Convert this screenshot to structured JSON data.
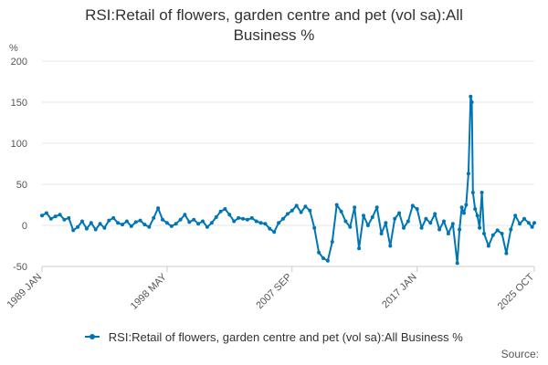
{
  "title_lines": [
    "RSI:Retail of flowers, garden centre and pet (vol sa):All",
    "Business %"
  ],
  "source": "Source:",
  "colors": {
    "series": "#0075b4",
    "grid": "#e6e6e6",
    "axis": "#cccccc"
  },
  "chart_data": {
    "type": "line",
    "title": "RSI:Retail of flowers, garden centre and pet (vol sa):All Business %",
    "ylabel": "%",
    "xlabel": "",
    "ylim": [
      -50,
      200
    ],
    "yticks": [
      -50,
      0,
      50,
      100,
      150,
      200
    ],
    "xlim": [
      "1989-01",
      "2025-10"
    ],
    "xticks": [
      "1989 JAN",
      "1998 MAY",
      "2007 SEP",
      "2017 JAN",
      "2025 OCT"
    ],
    "grid": true,
    "legend_position": "bottom",
    "series": [
      {
        "name": "RSI:Retail of flowers, garden centre and pet (vol sa):All Business %",
        "points": [
          [
            "1989-01",
            12
          ],
          [
            "1989-05",
            15
          ],
          [
            "1989-09",
            8
          ],
          [
            "1990-01",
            11
          ],
          [
            "1990-05",
            13
          ],
          [
            "1990-09",
            7
          ],
          [
            "1991-01",
            9
          ],
          [
            "1991-05",
            -6
          ],
          [
            "1991-09",
            -2
          ],
          [
            "1992-01",
            5
          ],
          [
            "1992-05",
            -4
          ],
          [
            "1992-09",
            3
          ],
          [
            "1993-01",
            -5
          ],
          [
            "1993-05",
            2
          ],
          [
            "1993-09",
            -3
          ],
          [
            "1994-01",
            6
          ],
          [
            "1994-05",
            9
          ],
          [
            "1994-09",
            3
          ],
          [
            "1995-01",
            1
          ],
          [
            "1995-05",
            5
          ],
          [
            "1995-09",
            -1
          ],
          [
            "1996-01",
            4
          ],
          [
            "1996-05",
            6
          ],
          [
            "1996-09",
            1
          ],
          [
            "1997-01",
            -2
          ],
          [
            "1997-05",
            9
          ],
          [
            "1997-09",
            21
          ],
          [
            "1998-01",
            7
          ],
          [
            "1998-05",
            3
          ],
          [
            "1998-09",
            -1
          ],
          [
            "1999-01",
            2
          ],
          [
            "1999-05",
            7
          ],
          [
            "1999-09",
            13
          ],
          [
            "2000-01",
            4
          ],
          [
            "2000-05",
            7
          ],
          [
            "2000-09",
            2
          ],
          [
            "2001-01",
            5
          ],
          [
            "2001-05",
            -2
          ],
          [
            "2001-09",
            3
          ],
          [
            "2002-01",
            10
          ],
          [
            "2002-05",
            17
          ],
          [
            "2002-09",
            20
          ],
          [
            "2003-01",
            13
          ],
          [
            "2003-05",
            5
          ],
          [
            "2003-09",
            9
          ],
          [
            "2004-01",
            8
          ],
          [
            "2004-05",
            7
          ],
          [
            "2004-09",
            9
          ],
          [
            "2005-01",
            5
          ],
          [
            "2005-05",
            3
          ],
          [
            "2005-09",
            2
          ],
          [
            "2006-01",
            -4
          ],
          [
            "2006-05",
            -8
          ],
          [
            "2006-09",
            3
          ],
          [
            "2007-01",
            8
          ],
          [
            "2007-05",
            14
          ],
          [
            "2007-09",
            18
          ],
          [
            "2008-01",
            24
          ],
          [
            "2008-05",
            16
          ],
          [
            "2008-09",
            23
          ],
          [
            "2009-01",
            18
          ],
          [
            "2009-05",
            -3
          ],
          [
            "2009-09",
            -33
          ],
          [
            "2010-01",
            -40
          ],
          [
            "2010-05",
            -43
          ],
          [
            "2010-09",
            -20
          ],
          [
            "2011-01",
            25
          ],
          [
            "2011-05",
            17
          ],
          [
            "2011-09",
            5
          ],
          [
            "2012-01",
            -2
          ],
          [
            "2012-05",
            22
          ],
          [
            "2012-09",
            -28
          ],
          [
            "2013-01",
            12
          ],
          [
            "2013-05",
            0
          ],
          [
            "2013-09",
            10
          ],
          [
            "2014-01",
            22
          ],
          [
            "2014-05",
            -10
          ],
          [
            "2014-09",
            3
          ],
          [
            "2015-01",
            -25
          ],
          [
            "2015-05",
            8
          ],
          [
            "2015-09",
            15
          ],
          [
            "2016-01",
            -3
          ],
          [
            "2016-05",
            5
          ],
          [
            "2016-09",
            24
          ],
          [
            "2017-01",
            20
          ],
          [
            "2017-05",
            -3
          ],
          [
            "2017-09",
            8
          ],
          [
            "2018-01",
            3
          ],
          [
            "2018-05",
            14
          ],
          [
            "2018-09",
            -5
          ],
          [
            "2019-01",
            5
          ],
          [
            "2019-05",
            -10
          ],
          [
            "2019-09",
            2
          ],
          [
            "2020-01",
            -46
          ],
          [
            "2020-03",
            -5
          ],
          [
            "2020-05",
            22
          ],
          [
            "2020-07",
            15
          ],
          [
            "2020-09",
            25
          ],
          [
            "2020-11",
            63
          ],
          [
            "2021-01",
            157
          ],
          [
            "2021-02",
            150
          ],
          [
            "2021-03",
            40
          ],
          [
            "2021-05",
            20
          ],
          [
            "2021-07",
            12
          ],
          [
            "2021-09",
            -3
          ],
          [
            "2021-11",
            40
          ],
          [
            "2022-01",
            -10
          ],
          [
            "2022-05",
            -25
          ],
          [
            "2022-09",
            -12
          ],
          [
            "2023-01",
            -6
          ],
          [
            "2023-05",
            -10
          ],
          [
            "2023-09",
            -34
          ],
          [
            "2024-01",
            -5
          ],
          [
            "2024-05",
            12
          ],
          [
            "2024-09",
            2
          ],
          [
            "2025-01",
            8
          ],
          [
            "2025-05",
            3
          ],
          [
            "2025-08",
            -2
          ],
          [
            "2025-10",
            3
          ]
        ]
      }
    ]
  }
}
